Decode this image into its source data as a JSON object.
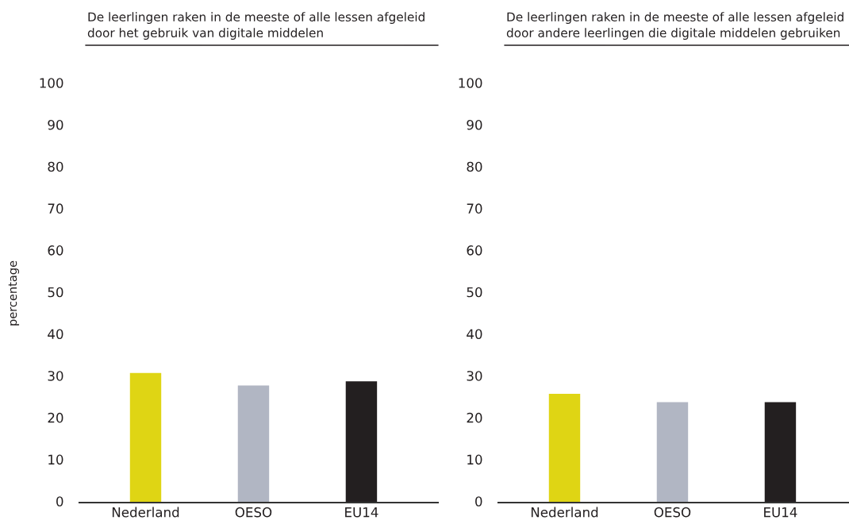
{
  "chart_data": [
    {
      "type": "bar",
      "title": "De leerlingen raken in de meeste of alle lessen afgeleid\ndoor het gebruik van digitale middelen",
      "ylabel": "percentage",
      "categories": [
        "Nederland",
        "OESO",
        "EU14"
      ],
      "values": [
        31,
        28,
        29
      ],
      "colors": [
        "#dfd514",
        "#b1b6c3",
        "#231f20"
      ],
      "ylim": [
        0,
        100
      ],
      "yticks": [
        0,
        10,
        20,
        30,
        40,
        50,
        60,
        70,
        80,
        90,
        100
      ]
    },
    {
      "type": "bar",
      "title": "De leerlingen raken in de meeste of alle lessen afgeleid\ndoor andere leerlingen die digitale middelen gebruiken",
      "categories": [
        "Nederland",
        "OESO",
        "EU14"
      ],
      "values": [
        26,
        24,
        24
      ],
      "colors": [
        "#dfd514",
        "#b1b6c3",
        "#231f20"
      ],
      "ylim": [
        0,
        100
      ],
      "yticks": [
        0,
        10,
        20,
        30,
        40,
        50,
        60,
        70,
        80,
        90,
        100
      ]
    }
  ]
}
